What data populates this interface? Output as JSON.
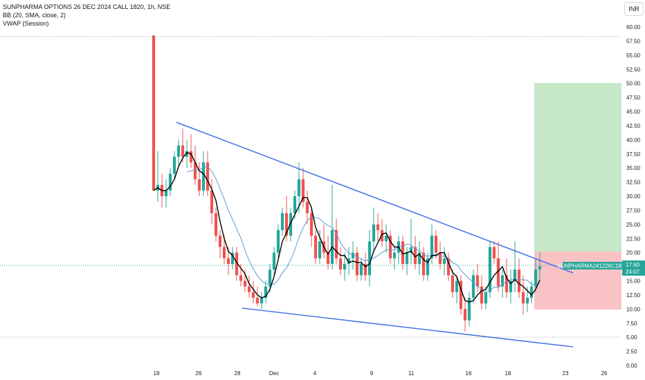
{
  "legend": {
    "title": "SUNPHARMA OPTIONS 26 DEC 2024 CALL 1820, 1h, NSE",
    "bb": "BB (20, SMA, close, 2)",
    "vwap": "VWAP (Session)"
  },
  "currency": "INR",
  "last_price": {
    "symbol": "SUNPHARMA241226C1820",
    "price": "17.60",
    "countdown": "24:07"
  },
  "colors": {
    "up": "#26a69a",
    "down": "#ef5350",
    "bb_basis": "#000000",
    "vwap": "#5b9bd5",
    "trendline": "#4a74e6",
    "profit_zone": "#bfe5c3",
    "loss_zone": "#f8c0c3",
    "label_bg": "#26a69a"
  },
  "chart_data": {
    "type": "candlestick",
    "y_axis": {
      "ticks": [
        "60.00",
        "57.50",
        "55.00",
        "52.50",
        "50.00",
        "47.50",
        "45.00",
        "42.50",
        "40.00",
        "37.50",
        "35.00",
        "32.50",
        "30.00",
        "27.50",
        "25.00",
        "22.50",
        "20.00",
        "17.50",
        "15.00",
        "12.50",
        "10.00",
        "7.50",
        "5.00",
        "2.50",
        "0.00"
      ],
      "range": [
        0,
        60
      ]
    },
    "x_axis": {
      "ticks": [
        "18",
        "26",
        "28",
        "Dec",
        "4",
        "9",
        "11",
        "16",
        "18",
        "23",
        "26"
      ]
    },
    "candles": [
      [
        58.5,
        58.5,
        31,
        31
      ],
      [
        31,
        38,
        29,
        32
      ],
      [
        32,
        34,
        28,
        30
      ],
      [
        30,
        33,
        28,
        31
      ],
      [
        31,
        35,
        30,
        34
      ],
      [
        34,
        38,
        33,
        37
      ],
      [
        37,
        40,
        35,
        39
      ],
      [
        39,
        42,
        36,
        37
      ],
      [
        37,
        40,
        35,
        38
      ],
      [
        38,
        41,
        35,
        36
      ],
      [
        36,
        39,
        32,
        33
      ],
      [
        33,
        36,
        30,
        31
      ],
      [
        31,
        38,
        30,
        36
      ],
      [
        36,
        38,
        30,
        31
      ],
      [
        31,
        33,
        25,
        27
      ],
      [
        27,
        28,
        22,
        23
      ],
      [
        23,
        24,
        19,
        21
      ],
      [
        21,
        23,
        18,
        19
      ],
      [
        19,
        21,
        16,
        18
      ],
      [
        18,
        21,
        17,
        20
      ],
      [
        20,
        21,
        15,
        16
      ],
      [
        16,
        18,
        14,
        15
      ],
      [
        15,
        17,
        13,
        14
      ],
      [
        14,
        16,
        12,
        13
      ],
      [
        13,
        15,
        11,
        12
      ],
      [
        12,
        14,
        10.5,
        11
      ],
      [
        11,
        13,
        10,
        12
      ],
      [
        12,
        15,
        11,
        14
      ],
      [
        14,
        18,
        13,
        17
      ],
      [
        17,
        21,
        16,
        20
      ],
      [
        20,
        25,
        19,
        24
      ],
      [
        24,
        28,
        23,
        27
      ],
      [
        27,
        30,
        22,
        23
      ],
      [
        23,
        28,
        22,
        27
      ],
      [
        27,
        31,
        26,
        30
      ],
      [
        30,
        36,
        27,
        33
      ],
      [
        33,
        35,
        28,
        29
      ],
      [
        29,
        31,
        25,
        27
      ],
      [
        27,
        28,
        21,
        23
      ],
      [
        23,
        24,
        18,
        19
      ],
      [
        19,
        24,
        18,
        22
      ],
      [
        22,
        25,
        19,
        20
      ],
      [
        20,
        23,
        17,
        18
      ],
      [
        18,
        32,
        17,
        24
      ],
      [
        24,
        26,
        18,
        19
      ],
      [
        19,
        21,
        16,
        17
      ],
      [
        17,
        20,
        15,
        18
      ],
      [
        18,
        21,
        16,
        19
      ],
      [
        19,
        22,
        17,
        20
      ],
      [
        20,
        21,
        15,
        16
      ],
      [
        16,
        19,
        15,
        18
      ],
      [
        18,
        20,
        15,
        16
      ],
      [
        16,
        24,
        14,
        22
      ],
      [
        22,
        28,
        20,
        25
      ],
      [
        25,
        27,
        22,
        24
      ],
      [
        24,
        26,
        21,
        22
      ],
      [
        22,
        25,
        20,
        23
      ],
      [
        23,
        24,
        18,
        19
      ],
      [
        19,
        21,
        17,
        20
      ],
      [
        20,
        23,
        18,
        22
      ],
      [
        22,
        23,
        17,
        18
      ],
      [
        18,
        21,
        16,
        20
      ],
      [
        20,
        26,
        18,
        21
      ],
      [
        21,
        23,
        17,
        18
      ],
      [
        18,
        22,
        16,
        20
      ],
      [
        20,
        21,
        15,
        16
      ],
      [
        16,
        20,
        15,
        19
      ],
      [
        19,
        25,
        18,
        23
      ],
      [
        23,
        24,
        19,
        20
      ],
      [
        20,
        22,
        17,
        18
      ],
      [
        18,
        21,
        16,
        19
      ],
      [
        19,
        20,
        15,
        16
      ],
      [
        16,
        17,
        12,
        13
      ],
      [
        13,
        16,
        11,
        15
      ],
      [
        15,
        16,
        9,
        10
      ],
      [
        10,
        12,
        6,
        8
      ],
      [
        8,
        13,
        7,
        12
      ],
      [
        12,
        17,
        11,
        16
      ],
      [
        16,
        18,
        13,
        14
      ],
      [
        14,
        16,
        10,
        11
      ],
      [
        11,
        14,
        10,
        13
      ],
      [
        13,
        22,
        12,
        21
      ],
      [
        21,
        22,
        18,
        19
      ],
      [
        19,
        22,
        13,
        14
      ],
      [
        14,
        17,
        12,
        16
      ],
      [
        16,
        19,
        12,
        13
      ],
      [
        13,
        17,
        11,
        15
      ],
      [
        15,
        22,
        13,
        17
      ],
      [
        17,
        19,
        12,
        13
      ],
      [
        13,
        16,
        9,
        11
      ],
      [
        11,
        14,
        9.5,
        12
      ],
      [
        12,
        15,
        11,
        14
      ],
      [
        14,
        19,
        13,
        17
      ],
      [
        17,
        20,
        15,
        17.6
      ]
    ]
  },
  "annotations": {
    "profit_target": 50,
    "entry": 20,
    "stop": 10
  }
}
